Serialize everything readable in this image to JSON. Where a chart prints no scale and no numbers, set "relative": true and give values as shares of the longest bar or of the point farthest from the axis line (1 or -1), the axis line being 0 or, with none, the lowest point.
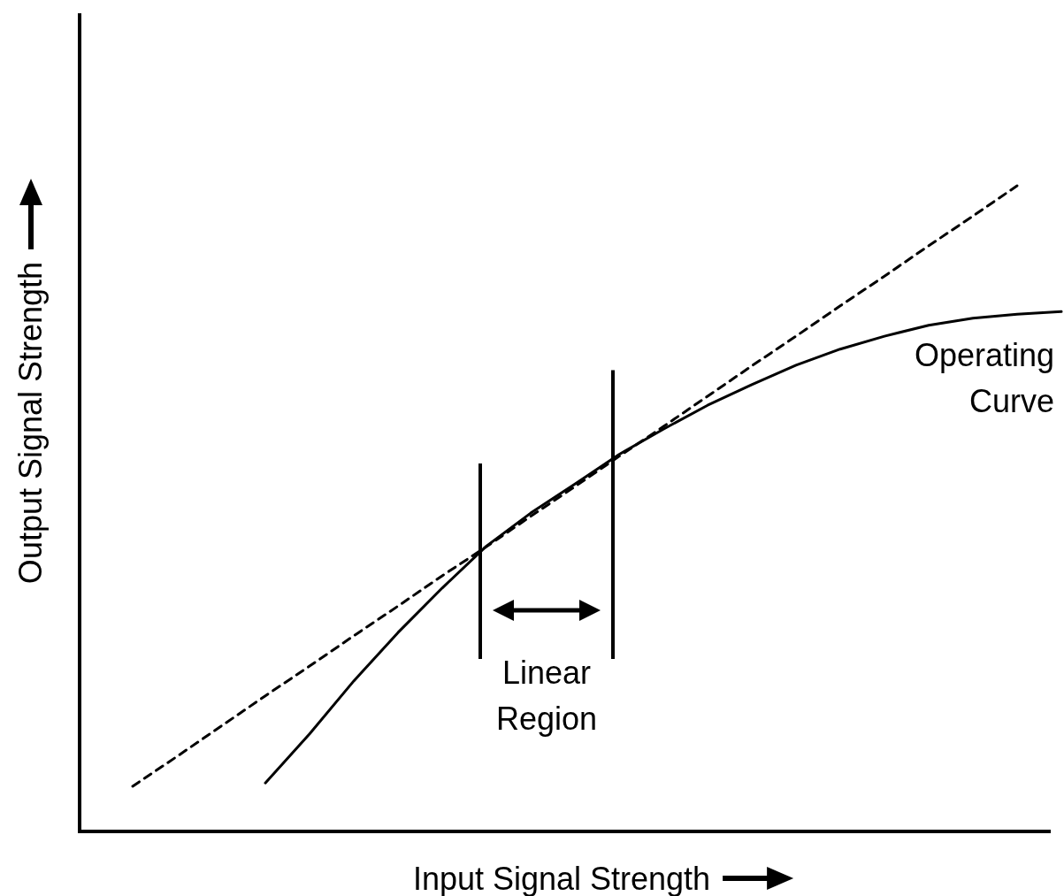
{
  "chart_data": {
    "type": "line",
    "relative": true,
    "xlabel": "Input Signal Strength",
    "ylabel": "Output Signal Strength",
    "categories": [
      null,
      null,
      null,
      null,
      null,
      null,
      null,
      null,
      null,
      null,
      null,
      null,
      null,
      null,
      null,
      null,
      null,
      null,
      null,
      null,
      null,
      null
    ],
    "series": [
      {
        "name": "Operating Curve",
        "color": "#000000",
        "line_style": "solid",
        "values": [
          null,
          null,
          null,
          0.075,
          0.151,
          0.233,
          0.308,
          0.377,
          0.442,
          0.493,
          0.538,
          0.584,
          0.623,
          0.66,
          0.692,
          0.722,
          0.747,
          0.767,
          0.784,
          0.795,
          0.801,
          0.805
        ]
      },
      {
        "color": "#000000",
        "line_style": "dashed",
        "values": [
          0.07,
          0.116,
          0.163,
          0.21,
          0.256,
          0.303,
          0.349,
          0.396,
          0.441,
          0.488,
          0.534,
          0.581,
          0.627,
          0.674,
          0.721,
          0.767,
          0.814,
          0.86,
          0.907,
          0.953,
          1.0,
          null
        ]
      }
    ],
    "annotations": [
      "Linear Region"
    ]
  }
}
